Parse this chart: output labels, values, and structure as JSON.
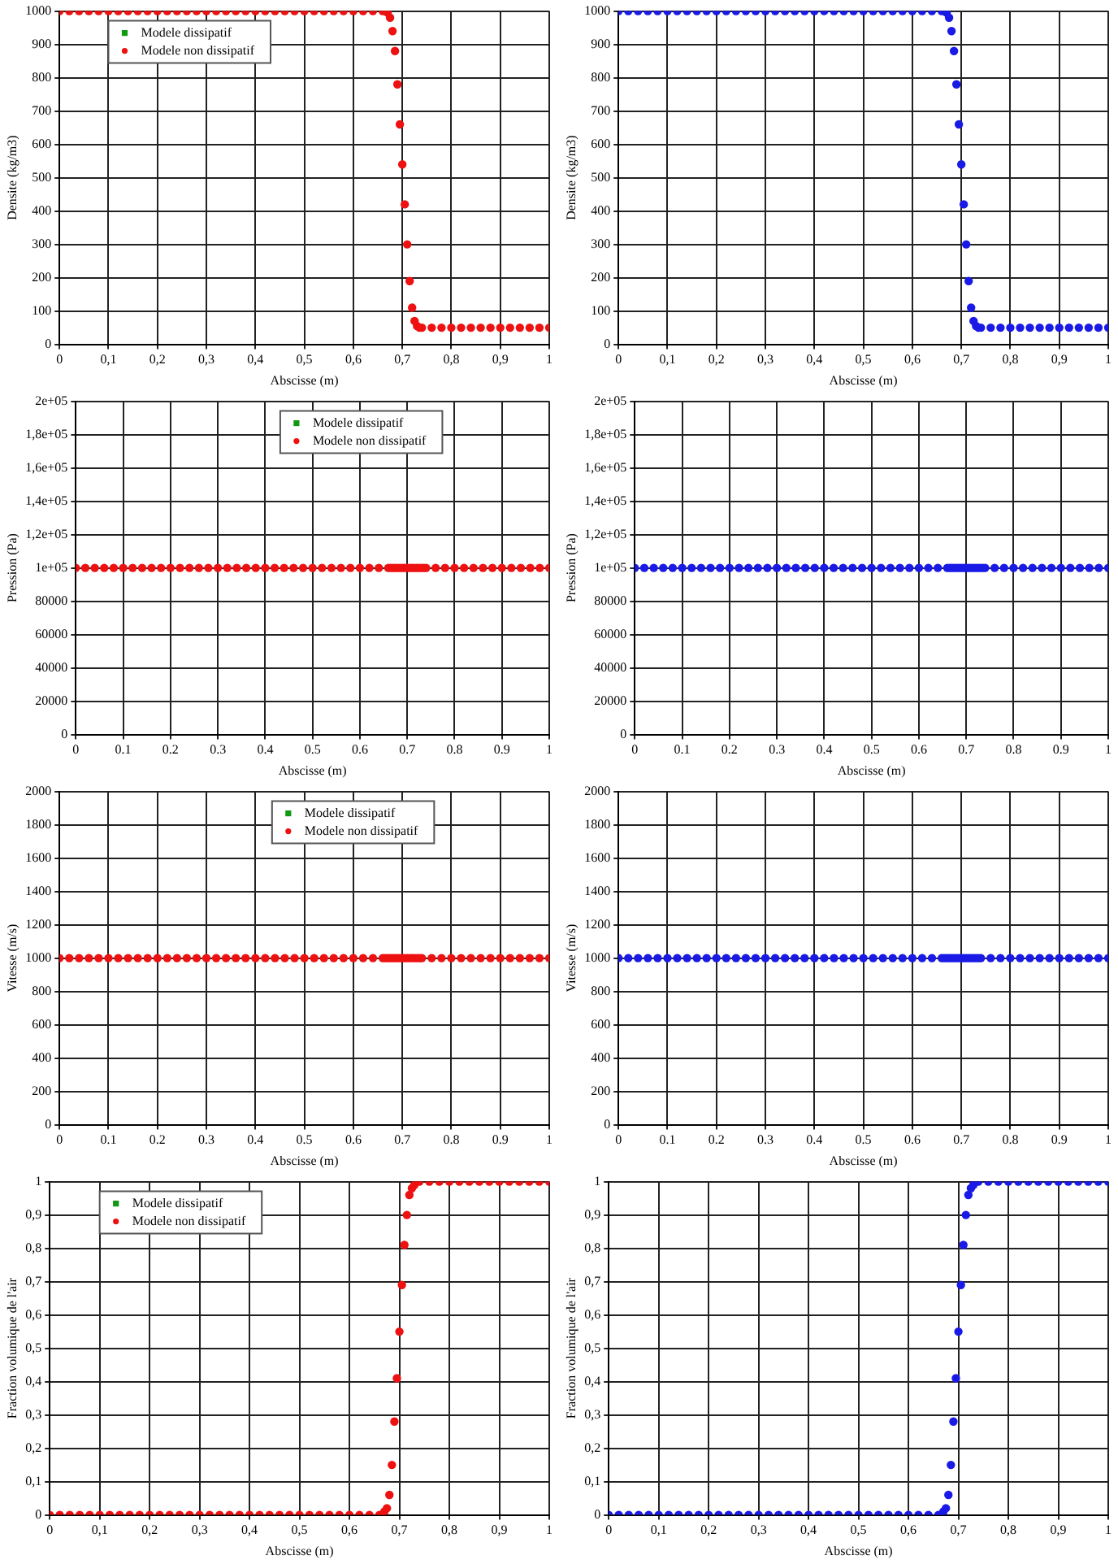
{
  "chart_data": [
    {
      "type": "scatter",
      "xlabel": "Abscisse (m)",
      "ylabel": "Densite (kg/m3)",
      "marker": "circle",
      "grid": true,
      "legend": "top left",
      "xlim": [
        0,
        1
      ],
      "xticks": [
        0,
        {
          "value": 0.1,
          "label": "0,1"
        },
        {
          "value": 0.2,
          "label": "0,2"
        },
        {
          "value": 0.3,
          "label": "0,3"
        },
        {
          "value": 0.4,
          "label": "0,4"
        },
        {
          "value": 0.5,
          "label": "0,5"
        },
        {
          "value": 0.6,
          "label": "0,6"
        },
        {
          "value": 0.7,
          "label": "0,7"
        },
        {
          "value": 0.8,
          "label": "0,8"
        },
        {
          "value": 0.9,
          "label": "0,9"
        },
        1
      ],
      "ylim": [
        0,
        1000
      ],
      "yticks": [
        0,
        100,
        200,
        300,
        400,
        500,
        600,
        700,
        800,
        900,
        1000
      ],
      "x": [
        0,
        0.02,
        0.04,
        0.06,
        0.08,
        0.1,
        0.12,
        0.14,
        0.16,
        0.18,
        0.2,
        0.22,
        0.24,
        0.26,
        0.28,
        0.3,
        0.32,
        0.34,
        0.36,
        0.38,
        0.4,
        0.42,
        0.44,
        0.46,
        0.48,
        0.5,
        0.52,
        0.54,
        0.56,
        0.58,
        0.6,
        0.62,
        0.64,
        0.66,
        0.665,
        0.67,
        0.675,
        0.68,
        0.685,
        0.69,
        0.695,
        0.7,
        0.705,
        0.71,
        0.715,
        0.72,
        0.725,
        0.73,
        0.735,
        0.74,
        0.76,
        0.78,
        0.8,
        0.82,
        0.84,
        0.86,
        0.88,
        0.9,
        0.92,
        0.94,
        0.96,
        0.98,
        1
      ],
      "series": [
        {
          "name": "Modele dissipatif",
          "color": "#119911",
          "marker": "square",
          "values": [
            null,
            null,
            null,
            null,
            null,
            null,
            null,
            null,
            null,
            null,
            null,
            null,
            null,
            null,
            null,
            null,
            null,
            null,
            null,
            null,
            null,
            null,
            null,
            null,
            null,
            null,
            null,
            null,
            null,
            null,
            null,
            null,
            null,
            null,
            null,
            null,
            null,
            null,
            null,
            null,
            null,
            null,
            null,
            null,
            null,
            null,
            null,
            null,
            null,
            null,
            null,
            null,
            null,
            null,
            null,
            null,
            null,
            null,
            null,
            null,
            null,
            null,
            null
          ]
        },
        {
          "name": "Modele non dissipatif",
          "color": "#ee1111",
          "values": [
            1000,
            1000,
            1000,
            1000,
            1000,
            1000,
            1000,
            1000,
            1000,
            1000,
            1000,
            1000,
            1000,
            1000,
            1000,
            1000,
            1000,
            1000,
            1000,
            1000,
            1000,
            1000,
            1000,
            1000,
            1000,
            1000,
            1000,
            1000,
            1000,
            1000,
            1000,
            1000,
            1000,
            1000,
            1000,
            995,
            980,
            940,
            880,
            780,
            660,
            540,
            420,
            300,
            190,
            110,
            70,
            55,
            50,
            50,
            50,
            50,
            50,
            50,
            50,
            50,
            50,
            50,
            50,
            50,
            50,
            50,
            50
          ]
        }
      ]
    },
    {
      "type": "scatter",
      "xlabel": "Abscisse (m)",
      "ylabel": "Densite (kg/m3)",
      "marker": "circle",
      "grid": true,
      "xlim": [
        0,
        1
      ],
      "xticks": [
        0,
        {
          "value": 0.1,
          "label": "0,1"
        },
        {
          "value": 0.2,
          "label": "0,2"
        },
        {
          "value": 0.3,
          "label": "0,3"
        },
        {
          "value": 0.4,
          "label": "0,4"
        },
        {
          "value": 0.5,
          "label": "0,5"
        },
        {
          "value": 0.6,
          "label": "0,6"
        },
        {
          "value": 0.7,
          "label": "0,7"
        },
        {
          "value": 0.8,
          "label": "0,8"
        },
        {
          "value": 0.9,
          "label": "0,9"
        },
        1
      ],
      "ylim": [
        0,
        1000
      ],
      "yticks": [
        0,
        100,
        200,
        300,
        400,
        500,
        600,
        700,
        800,
        900,
        1000
      ],
      "x": [
        0,
        0.02,
        0.04,
        0.06,
        0.08,
        0.1,
        0.12,
        0.14,
        0.16,
        0.18,
        0.2,
        0.22,
        0.24,
        0.26,
        0.28,
        0.3,
        0.32,
        0.34,
        0.36,
        0.38,
        0.4,
        0.42,
        0.44,
        0.46,
        0.48,
        0.5,
        0.52,
        0.54,
        0.56,
        0.58,
        0.6,
        0.62,
        0.64,
        0.66,
        0.665,
        0.67,
        0.675,
        0.68,
        0.685,
        0.69,
        0.695,
        0.7,
        0.705,
        0.71,
        0.715,
        0.72,
        0.725,
        0.73,
        0.735,
        0.74,
        0.76,
        0.78,
        0.8,
        0.82,
        0.84,
        0.86,
        0.88,
        0.9,
        0.92,
        0.94,
        0.96,
        0.98,
        1
      ],
      "series": [
        {
          "color": "#1a1ae6",
          "values": [
            1000,
            1000,
            1000,
            1000,
            1000,
            1000,
            1000,
            1000,
            1000,
            1000,
            1000,
            1000,
            1000,
            1000,
            1000,
            1000,
            1000,
            1000,
            1000,
            1000,
            1000,
            1000,
            1000,
            1000,
            1000,
            1000,
            1000,
            1000,
            1000,
            1000,
            1000,
            1000,
            1000,
            1000,
            1000,
            995,
            980,
            940,
            880,
            780,
            660,
            540,
            420,
            300,
            190,
            110,
            70,
            55,
            50,
            50,
            50,
            50,
            50,
            50,
            50,
            50,
            50,
            50,
            50,
            50,
            50,
            50,
            50
          ]
        }
      ]
    },
    {
      "type": "scatter",
      "xlabel": "Abscisse (m)",
      "ylabel": "Pression (Pa)",
      "marker": "circle",
      "grid": true,
      "legend": "top",
      "xlim": [
        0,
        1
      ],
      "xticks": [
        0,
        0.1,
        0.2,
        0.3,
        0.4,
        0.5,
        0.6,
        0.7,
        0.8,
        0.9,
        1
      ],
      "ylim": [
        0,
        200000
      ],
      "yticks": [
        0,
        20000,
        40000,
        60000,
        80000,
        {
          "value": 100000,
          "label": "1e+05"
        },
        {
          "value": 120000,
          "label": "1,2e+05"
        },
        {
          "value": 140000,
          "label": "1,4e+05"
        },
        {
          "value": 160000,
          "label": "1,6e+05"
        },
        {
          "value": 180000,
          "label": "1,8e+05"
        },
        {
          "value": 200000,
          "label": "2e+05"
        }
      ],
      "x": [
        0,
        0.02,
        0.04,
        0.06,
        0.08,
        0.1,
        0.12,
        0.14,
        0.16,
        0.18,
        0.2,
        0.22,
        0.24,
        0.26,
        0.28,
        0.3,
        0.32,
        0.34,
        0.36,
        0.38,
        0.4,
        0.42,
        0.44,
        0.46,
        0.48,
        0.5,
        0.52,
        0.54,
        0.56,
        0.58,
        0.6,
        0.62,
        0.64,
        0.66,
        0.665,
        0.67,
        0.675,
        0.68,
        0.685,
        0.69,
        0.695,
        0.7,
        0.705,
        0.71,
        0.715,
        0.72,
        0.725,
        0.73,
        0.735,
        0.74,
        0.76,
        0.78,
        0.8,
        0.82,
        0.84,
        0.86,
        0.88,
        0.9,
        0.92,
        0.94,
        0.96,
        0.98,
        1
      ],
      "series": [
        {
          "name": "Modele dissipatif",
          "color": "#119911",
          "marker": "square",
          "values": [
            null,
            null,
            null,
            null,
            null,
            null,
            null,
            null,
            null,
            null,
            null,
            null,
            null,
            null,
            null,
            null,
            null,
            null,
            null,
            null,
            null,
            null,
            null,
            null,
            null,
            null,
            null,
            null,
            null,
            null,
            null,
            null,
            null,
            null,
            null,
            null,
            null,
            null,
            null,
            null,
            null,
            null,
            null,
            null,
            null,
            null,
            null,
            null,
            null,
            null,
            null,
            null,
            null,
            null,
            null,
            null,
            null,
            null,
            null,
            null,
            null,
            null,
            null
          ]
        },
        {
          "name": "Modele non dissipatif",
          "color": "#ee1111",
          "values": [
            100000,
            100000,
            100000,
            100000,
            100000,
            100000,
            100000,
            100000,
            100000,
            100000,
            100000,
            100000,
            100000,
            100000,
            100000,
            100000,
            100000,
            100000,
            100000,
            100000,
            100000,
            100000,
            100000,
            100000,
            100000,
            100000,
            100000,
            100000,
            100000,
            100000,
            100000,
            100000,
            100000,
            100000,
            100000,
            100000,
            100000,
            100000,
            100000,
            100000,
            100000,
            100000,
            100000,
            100000,
            100000,
            100000,
            100000,
            100000,
            100000,
            100000,
            100000,
            100000,
            100000,
            100000,
            100000,
            100000,
            100000,
            100000,
            100000,
            100000,
            100000,
            100000,
            100000
          ]
        }
      ]
    },
    {
      "type": "scatter",
      "xlabel": "Abscisse (m)",
      "ylabel": "Pression (Pa)",
      "marker": "circle",
      "grid": true,
      "xlim": [
        0,
        1
      ],
      "xticks": [
        0,
        0.1,
        0.2,
        0.3,
        0.4,
        0.5,
        0.6,
        0.7,
        0.8,
        0.9,
        1
      ],
      "ylim": [
        0,
        200000
      ],
      "yticks": [
        0,
        20000,
        40000,
        60000,
        80000,
        {
          "value": 100000,
          "label": "1e+05"
        },
        {
          "value": 120000,
          "label": "1,2e+05"
        },
        {
          "value": 140000,
          "label": "1,4e+05"
        },
        {
          "value": 160000,
          "label": "1,6e+05"
        },
        {
          "value": 180000,
          "label": "1,8e+05"
        },
        {
          "value": 200000,
          "label": "2e+05"
        }
      ],
      "x": [
        0,
        0.02,
        0.04,
        0.06,
        0.08,
        0.1,
        0.12,
        0.14,
        0.16,
        0.18,
        0.2,
        0.22,
        0.24,
        0.26,
        0.28,
        0.3,
        0.32,
        0.34,
        0.36,
        0.38,
        0.4,
        0.42,
        0.44,
        0.46,
        0.48,
        0.5,
        0.52,
        0.54,
        0.56,
        0.58,
        0.6,
        0.62,
        0.64,
        0.66,
        0.665,
        0.67,
        0.675,
        0.68,
        0.685,
        0.69,
        0.695,
        0.7,
        0.705,
        0.71,
        0.715,
        0.72,
        0.725,
        0.73,
        0.735,
        0.74,
        0.76,
        0.78,
        0.8,
        0.82,
        0.84,
        0.86,
        0.88,
        0.9,
        0.92,
        0.94,
        0.96,
        0.98,
        1
      ],
      "series": [
        {
          "color": "#1a1ae6",
          "values": [
            100000,
            100000,
            100000,
            100000,
            100000,
            100000,
            100000,
            100000,
            100000,
            100000,
            100000,
            100000,
            100000,
            100000,
            100000,
            100000,
            100000,
            100000,
            100000,
            100000,
            100000,
            100000,
            100000,
            100000,
            100000,
            100000,
            100000,
            100000,
            100000,
            100000,
            100000,
            100000,
            100000,
            100000,
            100000,
            100000,
            100000,
            100000,
            100000,
            100000,
            100000,
            100000,
            100000,
            100000,
            100000,
            100000,
            100000,
            100000,
            100000,
            100000,
            100000,
            100000,
            100000,
            100000,
            100000,
            100000,
            100000,
            100000,
            100000,
            100000,
            100000,
            100000,
            100000
          ]
        }
      ]
    },
    {
      "type": "scatter",
      "xlabel": "Abscisse (m)",
      "ylabel": "Vitesse (m/s)",
      "marker": "circle",
      "grid": true,
      "legend": "top",
      "xlim": [
        0,
        1
      ],
      "xticks": [
        0,
        0.1,
        0.2,
        0.3,
        0.4,
        0.5,
        0.6,
        0.7,
        0.8,
        0.9,
        1
      ],
      "ylim": [
        0,
        2000
      ],
      "yticks": [
        0,
        200,
        400,
        600,
        800,
        1000,
        1200,
        1400,
        1600,
        1800,
        2000
      ],
      "x": [
        0,
        0.02,
        0.04,
        0.06,
        0.08,
        0.1,
        0.12,
        0.14,
        0.16,
        0.18,
        0.2,
        0.22,
        0.24,
        0.26,
        0.28,
        0.3,
        0.32,
        0.34,
        0.36,
        0.38,
        0.4,
        0.42,
        0.44,
        0.46,
        0.48,
        0.5,
        0.52,
        0.54,
        0.56,
        0.58,
        0.6,
        0.62,
        0.64,
        0.66,
        0.665,
        0.67,
        0.675,
        0.68,
        0.685,
        0.69,
        0.695,
        0.7,
        0.705,
        0.71,
        0.715,
        0.72,
        0.725,
        0.73,
        0.735,
        0.74,
        0.76,
        0.78,
        0.8,
        0.82,
        0.84,
        0.86,
        0.88,
        0.9,
        0.92,
        0.94,
        0.96,
        0.98,
        1
      ],
      "series": [
        {
          "name": "Modele dissipatif",
          "color": "#119911",
          "marker": "square",
          "values": [
            null,
            null,
            null,
            null,
            null,
            null,
            null,
            null,
            null,
            null,
            null,
            null,
            null,
            null,
            null,
            null,
            null,
            null,
            null,
            null,
            null,
            null,
            null,
            null,
            null,
            null,
            null,
            null,
            null,
            null,
            null,
            null,
            null,
            null,
            null,
            null,
            null,
            null,
            null,
            null,
            null,
            null,
            null,
            null,
            null,
            null,
            null,
            null,
            null,
            null,
            null,
            null,
            null,
            null,
            null,
            null,
            null,
            null,
            null,
            null,
            null,
            null,
            null
          ]
        },
        {
          "name": "Modele non dissipatif",
          "color": "#ee1111",
          "values": [
            1000,
            1000,
            1000,
            1000,
            1000,
            1000,
            1000,
            1000,
            1000,
            1000,
            1000,
            1000,
            1000,
            1000,
            1000,
            1000,
            1000,
            1000,
            1000,
            1000,
            1000,
            1000,
            1000,
            1000,
            1000,
            1000,
            1000,
            1000,
            1000,
            1000,
            1000,
            1000,
            1000,
            1000,
            1000,
            1000,
            1000,
            1000,
            1000,
            1000,
            1000,
            1000,
            1000,
            1000,
            1000,
            1000,
            1000,
            1000,
            1000,
            1000,
            1000,
            1000,
            1000,
            1000,
            1000,
            1000,
            1000,
            1000,
            1000,
            1000,
            1000,
            1000,
            1000
          ]
        }
      ]
    },
    {
      "type": "scatter",
      "xlabel": "Abscisse (m)",
      "ylabel": "Vitesse (m/s)",
      "marker": "circle",
      "grid": true,
      "xlim": [
        0,
        1
      ],
      "xticks": [
        0,
        0.1,
        0.2,
        0.3,
        0.4,
        0.5,
        0.6,
        0.7,
        0.8,
        0.9,
        1
      ],
      "ylim": [
        0,
        2000
      ],
      "yticks": [
        0,
        200,
        400,
        600,
        800,
        1000,
        1200,
        1400,
        1600,
        1800,
        2000
      ],
      "x": [
        0,
        0.02,
        0.04,
        0.06,
        0.08,
        0.1,
        0.12,
        0.14,
        0.16,
        0.18,
        0.2,
        0.22,
        0.24,
        0.26,
        0.28,
        0.3,
        0.32,
        0.34,
        0.36,
        0.38,
        0.4,
        0.42,
        0.44,
        0.46,
        0.48,
        0.5,
        0.52,
        0.54,
        0.56,
        0.58,
        0.6,
        0.62,
        0.64,
        0.66,
        0.665,
        0.67,
        0.675,
        0.68,
        0.685,
        0.69,
        0.695,
        0.7,
        0.705,
        0.71,
        0.715,
        0.72,
        0.725,
        0.73,
        0.735,
        0.74,
        0.76,
        0.78,
        0.8,
        0.82,
        0.84,
        0.86,
        0.88,
        0.9,
        0.92,
        0.94,
        0.96,
        0.98,
        1
      ],
      "series": [
        {
          "color": "#1a1ae6",
          "values": [
            1000,
            1000,
            1000,
            1000,
            1000,
            1000,
            1000,
            1000,
            1000,
            1000,
            1000,
            1000,
            1000,
            1000,
            1000,
            1000,
            1000,
            1000,
            1000,
            1000,
            1000,
            1000,
            1000,
            1000,
            1000,
            1000,
            1000,
            1000,
            1000,
            1000,
            1000,
            1000,
            1000,
            1000,
            1000,
            1000,
            1000,
            1000,
            1000,
            1000,
            1000,
            1000,
            1000,
            1000,
            1000,
            1000,
            1000,
            1000,
            1000,
            1000,
            1000,
            1000,
            1000,
            1000,
            1000,
            1000,
            1000,
            1000,
            1000,
            1000,
            1000,
            1000,
            1000
          ]
        }
      ]
    },
    {
      "type": "scatter",
      "xlabel": "Abscisse (m)",
      "ylabel": "Fraction volumique de l'air",
      "marker": "circle",
      "grid": true,
      "legend": "top left",
      "xlim": [
        0,
        1
      ],
      "xticks": [
        0,
        {
          "value": 0.1,
          "label": "0,1"
        },
        {
          "value": 0.2,
          "label": "0,2"
        },
        {
          "value": 0.3,
          "label": "0,3"
        },
        {
          "value": 0.4,
          "label": "0,4"
        },
        {
          "value": 0.5,
          "label": "0,5"
        },
        {
          "value": 0.6,
          "label": "0,6"
        },
        {
          "value": 0.7,
          "label": "0,7"
        },
        {
          "value": 0.8,
          "label": "0,8"
        },
        {
          "value": 0.9,
          "label": "0,9"
        },
        1
      ],
      "ylim": [
        0,
        1
      ],
      "yticks": [
        0,
        {
          "value": 0.1,
          "label": "0,1"
        },
        {
          "value": 0.2,
          "label": "0,2"
        },
        {
          "value": 0.3,
          "label": "0,3"
        },
        {
          "value": 0.4,
          "label": "0,4"
        },
        {
          "value": 0.5,
          "label": "0,5"
        },
        {
          "value": 0.6,
          "label": "0,6"
        },
        {
          "value": 0.7,
          "label": "0,7"
        },
        {
          "value": 0.8,
          "label": "0,8"
        },
        {
          "value": 0.9,
          "label": "0,9"
        },
        1
      ],
      "x": [
        0,
        0.02,
        0.04,
        0.06,
        0.08,
        0.1,
        0.12,
        0.14,
        0.16,
        0.18,
        0.2,
        0.22,
        0.24,
        0.26,
        0.28,
        0.3,
        0.32,
        0.34,
        0.36,
        0.38,
        0.4,
        0.42,
        0.44,
        0.46,
        0.48,
        0.5,
        0.52,
        0.54,
        0.56,
        0.58,
        0.6,
        0.62,
        0.64,
        0.66,
        0.665,
        0.67,
        0.675,
        0.68,
        0.685,
        0.69,
        0.695,
        0.7,
        0.705,
        0.71,
        0.715,
        0.72,
        0.725,
        0.73,
        0.735,
        0.74,
        0.76,
        0.78,
        0.8,
        0.82,
        0.84,
        0.86,
        0.88,
        0.9,
        0.92,
        0.94,
        0.96,
        0.98,
        1
      ],
      "series": [
        {
          "name": "Modele dissipatif",
          "color": "#119911",
          "marker": "square",
          "values": [
            null,
            null,
            null,
            null,
            null,
            null,
            null,
            null,
            null,
            null,
            null,
            null,
            null,
            null,
            null,
            null,
            null,
            null,
            null,
            null,
            null,
            null,
            null,
            null,
            null,
            null,
            null,
            null,
            null,
            null,
            null,
            null,
            null,
            null,
            null,
            null,
            null,
            null,
            null,
            null,
            null,
            null,
            null,
            null,
            null,
            null,
            null,
            null,
            null,
            null,
            null,
            null,
            null,
            null,
            null,
            null,
            null,
            null,
            null,
            null,
            null,
            null,
            null
          ]
        },
        {
          "name": "Modele non dissipatif",
          "color": "#ee1111",
          "values": [
            0,
            0,
            0,
            0,
            0,
            0,
            0,
            0,
            0,
            0,
            0,
            0,
            0,
            0,
            0,
            0,
            0,
            0,
            0,
            0,
            0,
            0,
            0,
            0,
            0,
            0,
            0,
            0,
            0,
            0,
            0,
            0,
            0,
            0,
            0,
            0.01,
            0.02,
            0.06,
            0.15,
            0.28,
            0.41,
            0.55,
            0.69,
            0.81,
            0.9,
            0.96,
            0.98,
            0.99,
            1,
            1,
            1,
            1,
            1,
            1,
            1,
            1,
            1,
            1,
            1,
            1,
            1,
            1,
            1
          ]
        }
      ]
    },
    {
      "type": "scatter",
      "xlabel": "Abscisse (m)",
      "ylabel": "Fraction volumique de l'air",
      "marker": "circle",
      "grid": true,
      "xlim": [
        0,
        1
      ],
      "xticks": [
        0,
        {
          "value": 0.1,
          "label": "0,1"
        },
        {
          "value": 0.2,
          "label": "0,2"
        },
        {
          "value": 0.3,
          "label": "0,3"
        },
        {
          "value": 0.4,
          "label": "0,4"
        },
        {
          "value": 0.5,
          "label": "0,5"
        },
        {
          "value": 0.6,
          "label": "0,6"
        },
        {
          "value": 0.7,
          "label": "0,7"
        },
        {
          "value": 0.8,
          "label": "0,8"
        },
        {
          "value": 0.9,
          "label": "0,9"
        },
        1
      ],
      "ylim": [
        0,
        1
      ],
      "yticks": [
        0,
        {
          "value": 0.1,
          "label": "0,1"
        },
        {
          "value": 0.2,
          "label": "0,2"
        },
        {
          "value": 0.3,
          "label": "0,3"
        },
        {
          "value": 0.4,
          "label": "0,4"
        },
        {
          "value": 0.5,
          "label": "0,5"
        },
        {
          "value": 0.6,
          "label": "0,6"
        },
        {
          "value": 0.7,
          "label": "0,7"
        },
        {
          "value": 0.8,
          "label": "0,8"
        },
        {
          "value": 0.9,
          "label": "0,9"
        },
        1
      ],
      "x": [
        0,
        0.02,
        0.04,
        0.06,
        0.08,
        0.1,
        0.12,
        0.14,
        0.16,
        0.18,
        0.2,
        0.22,
        0.24,
        0.26,
        0.28,
        0.3,
        0.32,
        0.34,
        0.36,
        0.38,
        0.4,
        0.42,
        0.44,
        0.46,
        0.48,
        0.5,
        0.52,
        0.54,
        0.56,
        0.58,
        0.6,
        0.62,
        0.64,
        0.66,
        0.665,
        0.67,
        0.675,
        0.68,
        0.685,
        0.69,
        0.695,
        0.7,
        0.705,
        0.71,
        0.715,
        0.72,
        0.725,
        0.73,
        0.735,
        0.74,
        0.76,
        0.78,
        0.8,
        0.82,
        0.84,
        0.86,
        0.88,
        0.9,
        0.92,
        0.94,
        0.96,
        0.98,
        1
      ],
      "series": [
        {
          "color": "#1a1ae6",
          "values": [
            0,
            0,
            0,
            0,
            0,
            0,
            0,
            0,
            0,
            0,
            0,
            0,
            0,
            0,
            0,
            0,
            0,
            0,
            0,
            0,
            0,
            0,
            0,
            0,
            0,
            0,
            0,
            0,
            0,
            0,
            0,
            0,
            0,
            0,
            0,
            0.01,
            0.02,
            0.06,
            0.15,
            0.28,
            0.41,
            0.55,
            0.69,
            0.81,
            0.9,
            0.96,
            0.98,
            0.99,
            1,
            1,
            1,
            1,
            1,
            1,
            1,
            1,
            1,
            1,
            1,
            1,
            1,
            1,
            1
          ]
        }
      ]
    }
  ]
}
